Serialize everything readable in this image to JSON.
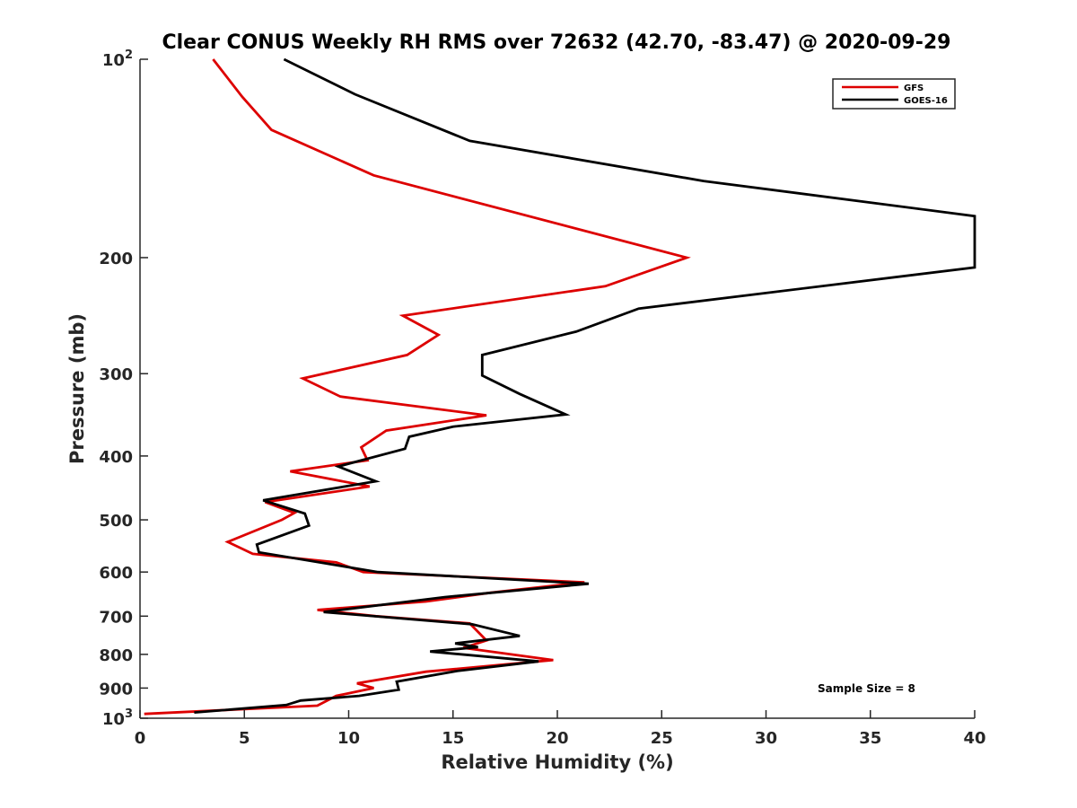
{
  "chart_data": {
    "type": "line",
    "title": "Clear CONUS Weekly RH RMS over 72632 (42.70, -83.47) @ 2020-09-29",
    "xlabel": "Relative Humidity (%)",
    "ylabel": "Pressure (mb)",
    "xlim": [
      0,
      40
    ],
    "ylim": [
      100,
      1000
    ],
    "y_scale": "log",
    "y_reversed": true,
    "grid": false,
    "legend_position": "top-right",
    "x_ticks": [
      "0",
      "5",
      "10",
      "15",
      "20",
      "25",
      "30",
      "35",
      "40"
    ],
    "y_ticks": [
      {
        "value": 100,
        "base": "10",
        "exp": "2"
      },
      {
        "value": 200,
        "label": "200"
      },
      {
        "value": 300,
        "label": "300"
      },
      {
        "value": 400,
        "label": "400"
      },
      {
        "value": 500,
        "label": "500"
      },
      {
        "value": 600,
        "label": "600"
      },
      {
        "value": 700,
        "label": "700"
      },
      {
        "value": 800,
        "label": "800"
      },
      {
        "value": 900,
        "label": "900"
      },
      {
        "value": 1000,
        "base": "10",
        "exp": "3"
      }
    ],
    "annotation": "Sample Size = 8",
    "series": [
      {
        "name": "GFS",
        "color": "#dd0000",
        "points": [
          [
            3.5,
            100
          ],
          [
            4.9,
            114
          ],
          [
            6.3,
            128
          ],
          [
            11.2,
            150
          ],
          [
            26.2,
            200
          ],
          [
            22.3,
            221
          ],
          [
            12.6,
            245
          ],
          [
            14.3,
            262
          ],
          [
            12.8,
            281
          ],
          [
            7.8,
            305
          ],
          [
            9.6,
            325
          ],
          [
            16.6,
            347
          ],
          [
            11.8,
            366
          ],
          [
            10.6,
            388
          ],
          [
            10.9,
            406
          ],
          [
            7.2,
            422
          ],
          [
            11.0,
            445
          ],
          [
            6.0,
            470
          ],
          [
            7.4,
            488
          ],
          [
            6.8,
            500
          ],
          [
            4.2,
            540
          ],
          [
            5.4,
            563
          ],
          [
            9.4,
            580
          ],
          [
            10.7,
            600
          ],
          [
            21.3,
            622
          ],
          [
            16.8,
            645
          ],
          [
            13.7,
            665
          ],
          [
            8.5,
            685
          ],
          [
            11.3,
            700
          ],
          [
            15.8,
            718
          ],
          [
            16.6,
            762
          ],
          [
            15.5,
            782
          ],
          [
            19.8,
            816
          ],
          [
            13.7,
            850
          ],
          [
            10.4,
            885
          ],
          [
            11.2,
            900
          ],
          [
            9.4,
            925
          ],
          [
            8.5,
            957
          ],
          [
            0.2,
            985
          ]
        ]
      },
      {
        "name": "GOES-16",
        "color": "#000000",
        "points": [
          [
            6.9,
            100
          ],
          [
            10.3,
            113
          ],
          [
            15.8,
            133
          ],
          [
            27.0,
            153
          ],
          [
            40.0,
            173
          ],
          [
            40.0,
            207
          ],
          [
            23.9,
            239
          ],
          [
            20.9,
            259
          ],
          [
            16.4,
            281
          ],
          [
            16.4,
            302
          ],
          [
            18.2,
            322
          ],
          [
            20.4,
            346
          ],
          [
            15.0,
            361
          ],
          [
            12.9,
            374
          ],
          [
            12.7,
            390
          ],
          [
            9.5,
            415
          ],
          [
            11.3,
            437
          ],
          [
            5.9,
            467
          ],
          [
            7.9,
            489
          ],
          [
            8.1,
            510
          ],
          [
            5.6,
            545
          ],
          [
            5.7,
            560
          ],
          [
            11.4,
            600
          ],
          [
            21.5,
            625
          ],
          [
            14.6,
            655
          ],
          [
            8.8,
            690
          ],
          [
            15.9,
            720
          ],
          [
            18.2,
            750
          ],
          [
            15.1,
            770
          ],
          [
            16.2,
            780
          ],
          [
            13.9,
            792
          ],
          [
            19.1,
            820
          ],
          [
            15.2,
            848
          ],
          [
            12.3,
            880
          ],
          [
            12.4,
            905
          ],
          [
            10.5,
            925
          ],
          [
            7.7,
            940
          ],
          [
            7.0,
            955
          ],
          [
            2.6,
            980
          ]
        ]
      }
    ]
  }
}
